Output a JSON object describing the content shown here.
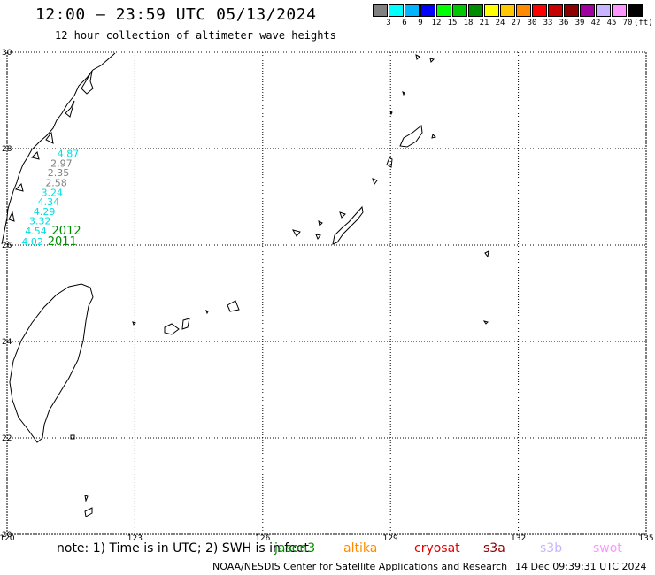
{
  "header": {
    "title": "12:00 — 23:59 UTC 05/13/2024",
    "subtitle": "12 hour collection of altimeter wave heights"
  },
  "colorbar": {
    "colors": [
      "#808080",
      "#00ffff",
      "#00b4ff",
      "#0000ff",
      "#00ff00",
      "#00c800",
      "#008c00",
      "#ffff00",
      "#ffc800",
      "#ff8c00",
      "#ff0000",
      "#c80000",
      "#8c0000",
      "#a000a0",
      "#c8b4ff",
      "#ff96ff",
      "#000000"
    ],
    "labels": [
      "3",
      "6",
      "9",
      "12",
      "15",
      "18",
      "21",
      "24",
      "27",
      "30",
      "33",
      "36",
      "39",
      "42",
      "45",
      "70"
    ],
    "unit": "(ft)"
  },
  "chart_data": {
    "type": "scatter",
    "xlim": [
      120,
      135
    ],
    "ylim": [
      20,
      30
    ],
    "xticks": [
      "120",
      "123",
      "126",
      "129",
      "132",
      "135"
    ],
    "yticks": [
      "20",
      "22",
      "24",
      "26",
      "28",
      "30"
    ],
    "grid": true,
    "observations": [
      {
        "lon": 121.18,
        "lat": 27.83,
        "label": "4.87",
        "color": "#00e0e0"
      },
      {
        "lon": 121.02,
        "lat": 27.62,
        "label": "2.97",
        "color": "#808080"
      },
      {
        "lon": 120.95,
        "lat": 27.43,
        "label": "2.35",
        "color": "#808080"
      },
      {
        "lon": 120.9,
        "lat": 27.22,
        "label": "2.58",
        "color": "#808080"
      },
      {
        "lon": 120.8,
        "lat": 27.02,
        "label": "3.24",
        "color": "#00e0e0"
      },
      {
        "lon": 120.72,
        "lat": 26.83,
        "label": "4.34",
        "color": "#00e0e0"
      },
      {
        "lon": 120.62,
        "lat": 26.62,
        "label": "4.29",
        "color": "#00e0e0"
      },
      {
        "lon": 120.52,
        "lat": 26.43,
        "label": "3.32",
        "color": "#00e0e0"
      },
      {
        "lon": 120.42,
        "lat": 26.22,
        "label": "4.54",
        "color": "#00e0e0"
      },
      {
        "lon": 120.34,
        "lat": 26.0,
        "label": "4.02",
        "color": "#00e0e0"
      }
    ],
    "pass_labels": [
      {
        "lon": 121.05,
        "lat": 26.22,
        "label": "2012",
        "color": "#008c00"
      },
      {
        "lon": 120.95,
        "lat": 26.0,
        "label": "2011",
        "color": "#008c00"
      }
    ]
  },
  "footer": {
    "note": "note: 1) Time is in UTC; 2) SWH is in feet",
    "satellites": [
      {
        "name": "jason3",
        "color": "#008c00"
      },
      {
        "name": "altika",
        "color": "#ff8c00"
      },
      {
        "name": "cryosat",
        "color": "#e00000"
      },
      {
        "name": "s3a",
        "color": "#8c0000"
      },
      {
        "name": "s3b",
        "color": "#c8b4ff"
      },
      {
        "name": "swot",
        "color": "#ff96ff"
      }
    ],
    "credit": "NOAA/NESDIS Center for Satellite Applications and Research",
    "timestamp": "14 Dec 09:39:31 UTC 2024"
  }
}
